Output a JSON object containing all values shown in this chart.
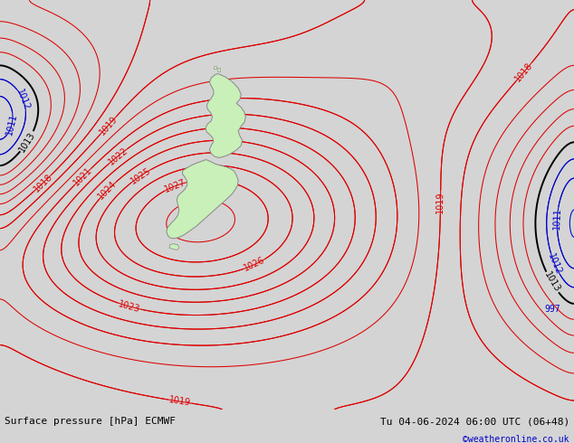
{
  "title_left": "Surface pressure [hPa] ECMWF",
  "title_right": "Tu 04-06-2024 06:00 UTC (06+48)",
  "title_right2": "©weatheronline.co.uk",
  "bg_color": "#d4d4d4",
  "land_color": "#c8f0b8",
  "coast_color": "#888888",
  "contour_red_color": "#dd0000",
  "contour_blue_color": "#0000cc",
  "contour_black_color": "#000000",
  "label_fontsize": 7,
  "footer_fontsize": 8,
  "red_label_levels": [
    1018,
    1019,
    1021,
    1022,
    1023,
    1024,
    1025,
    1026,
    1027
  ],
  "blue_label_levels": [
    1011,
    1012
  ],
  "black_label_levels": [
    1013
  ]
}
